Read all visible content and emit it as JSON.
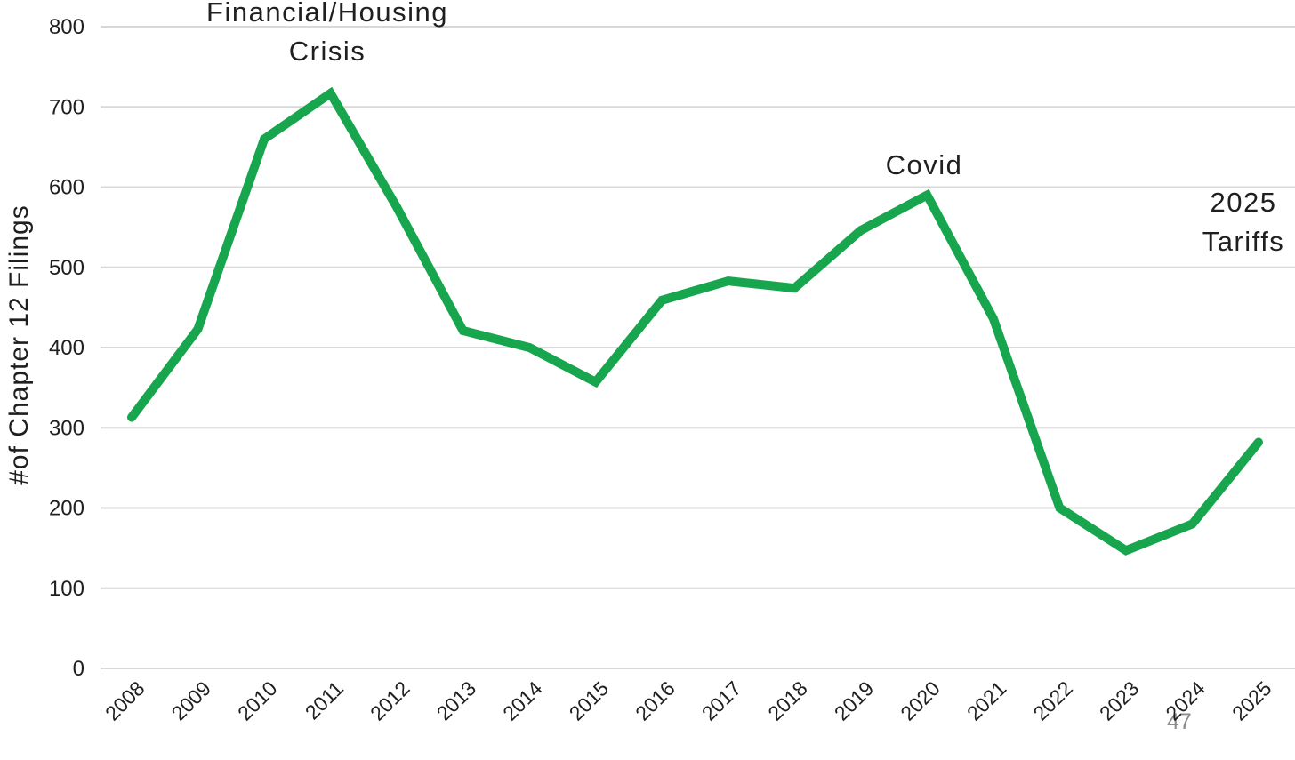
{
  "page": {
    "page_number": "47"
  },
  "chart_data": {
    "type": "line",
    "title": "",
    "xlabel": "",
    "ylabel": "#of Chapter 12 Filings",
    "categories": [
      "2008",
      "2009",
      "2010",
      "2011",
      "2012",
      "2013",
      "2014",
      "2015",
      "2016",
      "2017",
      "2018",
      "2019",
      "2020",
      "2021",
      "2022",
      "2023",
      "2024",
      "2025"
    ],
    "series": [
      {
        "name": "Chapter 12 filings",
        "values": [
          313,
          423,
          660,
          717,
          575,
          421,
          400,
          357,
          459,
          483,
          474,
          546,
          590,
          436,
          200,
          147,
          180,
          282
        ]
      }
    ],
    "ylim": [
      0,
      800
    ],
    "ytick_step": 100,
    "grid": "horizontal-only",
    "legend": "none",
    "annotations": [
      {
        "id": "financial-crisis",
        "text": "Financial/Housing\nCrisis",
        "target_year": "2011"
      },
      {
        "id": "covid",
        "text": "Covid",
        "target_year": "2020"
      },
      {
        "id": "tariffs",
        "text": "2025\nTariffs",
        "target_year": "2025"
      }
    ],
    "colors": {
      "line": "#17a54d",
      "gridline": "#d8d8d8",
      "text": "#1f1f1f",
      "page_number": "#8c8c8c"
    }
  }
}
